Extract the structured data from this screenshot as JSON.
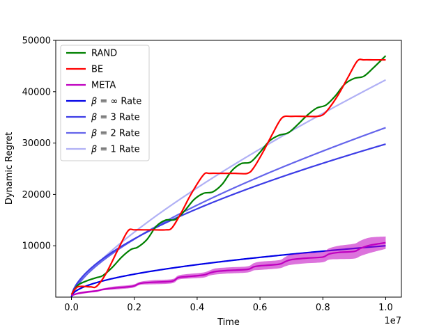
{
  "chart_data": {
    "type": "line",
    "title": "",
    "xlabel": "Time",
    "ylabel": "Dynamic Regret",
    "x_multiplier_label": "1e7",
    "xlim": [
      -0.05,
      1.05
    ],
    "ylim": [
      0,
      50000
    ],
    "x_ticks": [
      0.0,
      0.2,
      0.4,
      0.6,
      0.8,
      1.0
    ],
    "x_tick_labels": [
      "0.0",
      "0.2",
      "0.4",
      "0.6",
      "0.8",
      "1.0"
    ],
    "y_ticks": [
      10000,
      20000,
      30000,
      40000,
      50000
    ],
    "y_tick_labels": [
      "10000",
      "20000",
      "30000",
      "40000",
      "50000"
    ],
    "legend_position": "top-left",
    "grid": false,
    "series": [
      {
        "name": "RAND",
        "color": "#008000",
        "x": [
          0.0,
          0.02,
          0.05,
          0.08,
          0.1,
          0.13,
          0.16,
          0.19,
          0.21,
          0.24,
          0.27,
          0.3,
          0.33,
          0.36,
          0.39,
          0.42,
          0.45,
          0.48,
          0.51,
          0.54,
          0.57,
          0.6,
          0.63,
          0.66,
          0.69,
          0.72,
          0.75,
          0.78,
          0.81,
          0.84,
          0.87,
          0.9,
          0.93,
          0.96,
          1.0
        ],
        "y": [
          500,
          2300,
          3200,
          3800,
          4200,
          5800,
          7800,
          9300,
          9700,
          11200,
          13800,
          15000,
          15100,
          16800,
          19000,
          20200,
          20500,
          22000,
          24600,
          26000,
          26300,
          28200,
          30400,
          31500,
          32000,
          33600,
          35400,
          36800,
          37400,
          39200,
          41500,
          42600,
          43000,
          44600,
          47000
        ]
      },
      {
        "name": "BE",
        "color": "#ff0000",
        "x": [
          0.0,
          0.02,
          0.06,
          0.08,
          0.11,
          0.15,
          0.18,
          0.2,
          0.23,
          0.26,
          0.3,
          0.32,
          0.35,
          0.38,
          0.42,
          0.44,
          0.48,
          0.52,
          0.56,
          0.58,
          0.61,
          0.64,
          0.67,
          0.7,
          0.74,
          0.78,
          0.8,
          0.82,
          0.85,
          0.88,
          0.91,
          0.93,
          0.96,
          1.0
        ],
        "y": [
          500,
          2000,
          2000,
          2100,
          4600,
          9500,
          12900,
          13100,
          13100,
          13100,
          13100,
          13500,
          16500,
          20000,
          23800,
          24100,
          24100,
          24100,
          24100,
          25200,
          28300,
          31800,
          34900,
          35200,
          35200,
          35200,
          35500,
          36800,
          39500,
          42800,
          46000,
          46200,
          46200,
          46200
        ]
      },
      {
        "name": "META",
        "color": "#bf00bf",
        "x": [
          0.0,
          0.02,
          0.05,
          0.08,
          0.1,
          0.14,
          0.18,
          0.2,
          0.22,
          0.26,
          0.32,
          0.34,
          0.37,
          0.42,
          0.44,
          0.46,
          0.5,
          0.56,
          0.58,
          0.6,
          0.66,
          0.68,
          0.7,
          0.75,
          0.8,
          0.82,
          0.85,
          0.9,
          0.92,
          0.95,
          1.0
        ],
        "y": [
          300,
          700,
          1000,
          1200,
          1500,
          1800,
          2000,
          2200,
          2700,
          2900,
          3100,
          3800,
          4000,
          4300,
          4700,
          5000,
          5200,
          5400,
          5900,
          6100,
          6400,
          6900,
          7300,
          7600,
          7800,
          8400,
          8700,
          8900,
          9500,
          10100,
          10600
        ],
        "band_upper": [
          400,
          900,
          1200,
          1400,
          1700,
          2100,
          2300,
          2500,
          3000,
          3300,
          3500,
          4200,
          4500,
          4800,
          5200,
          5600,
          5800,
          6000,
          6600,
          6900,
          7200,
          7800,
          8300,
          8600,
          8800,
          9500,
          10000,
          10400,
          11000,
          11600,
          11800
        ],
        "band_lower": [
          200,
          500,
          800,
          1000,
          1300,
          1500,
          1700,
          1900,
          2400,
          2500,
          2700,
          3400,
          3600,
          3800,
          4200,
          4400,
          4600,
          4800,
          5200,
          5300,
          5600,
          6000,
          6300,
          6600,
          6800,
          7300,
          7400,
          7500,
          8000,
          8600,
          9400
        ]
      },
      {
        "name": "β=∞ Rate",
        "legend_beta": "∞",
        "color": "#0000e6",
        "formula": "10000*sqrt(x)",
        "x": [
          0.0,
          0.01,
          0.02,
          0.05,
          0.1,
          0.2,
          0.3,
          0.4,
          0.5,
          0.6,
          0.7,
          0.8,
          0.9,
          1.0
        ],
        "y": [
          0,
          1000,
          1414,
          2236,
          3162,
          4472,
          5477,
          6325,
          7071,
          7746,
          8367,
          8944,
          9487,
          10000
        ]
      },
      {
        "name": "β=3 Rate",
        "legend_beta": "3",
        "color": "#3c3ce6",
        "formula": "29800*x^0.6",
        "x": [
          0.0,
          0.01,
          0.02,
          0.05,
          0.1,
          0.2,
          0.3,
          0.4,
          0.5,
          0.6,
          0.7,
          0.8,
          0.9,
          1.0
        ],
        "y": [
          0,
          1875,
          2843,
          4948,
          7485,
          11342,
          14465,
          17185,
          19665,
          21921,
          24046,
          26040,
          27939,
          29800
        ]
      },
      {
        "name": "β=2 Rate",
        "legend_beta": "2",
        "color": "#6464eb",
        "formula": "33000*x^(2/3)",
        "x": [
          0.0,
          0.01,
          0.02,
          0.05,
          0.1,
          0.2,
          0.3,
          0.4,
          0.5,
          0.6,
          0.7,
          0.8,
          0.9,
          1.0
        ],
        "y": [
          0,
          1532,
          2432,
          4480,
          7111,
          11288,
          14791,
          17918,
          20789,
          23476,
          26012,
          28440,
          30761,
          33000
        ]
      },
      {
        "name": "β=1 Rate",
        "legend_beta": "1",
        "color": "#b0b0f5",
        "formula": "42300*x^0.75",
        "x": [
          0.0,
          0.01,
          0.02,
          0.05,
          0.1,
          0.2,
          0.3,
          0.4,
          0.5,
          0.6,
          0.7,
          0.8,
          0.9,
          1.0
        ],
        "y": [
          0,
          1338,
          2249,
          4472,
          7522,
          12650,
          17144,
          21268,
          25150,
          28840,
          32366,
          35775,
          39010,
          42300
        ]
      }
    ]
  }
}
